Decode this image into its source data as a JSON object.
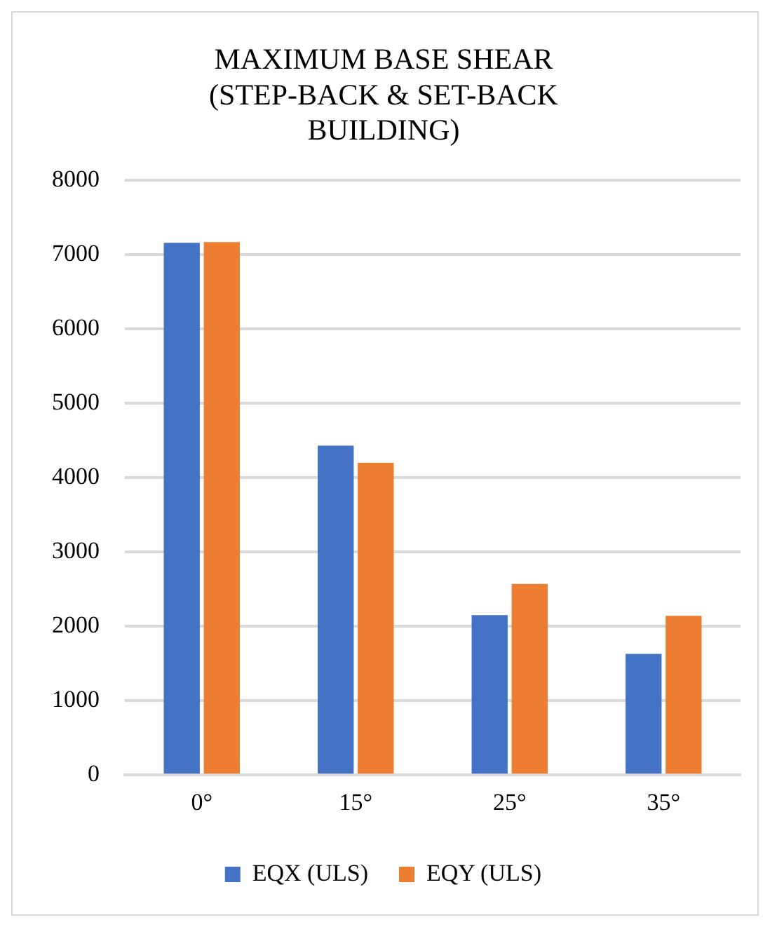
{
  "chart_data": {
    "type": "bar",
    "title": "MAXIMUM BASE SHEAR (STEP-BACK & SET-BACK BUILDING)",
    "categories": [
      "0°",
      "15°",
      "25°",
      "35°"
    ],
    "series": [
      {
        "name": "EQX (ULS)",
        "color": "#4472c4",
        "values": [
          7160,
          4430,
          2150,
          1630
        ]
      },
      {
        "name": "EQY (ULS)",
        "color": "#ed7d31",
        "values": [
          7170,
          4200,
          2570,
          2140
        ]
      }
    ],
    "ylim": [
      0,
      8000
    ],
    "yticks": [
      0,
      1000,
      2000,
      3000,
      4000,
      5000,
      6000,
      7000,
      8000
    ],
    "grid": "y",
    "legend": "bottom"
  }
}
